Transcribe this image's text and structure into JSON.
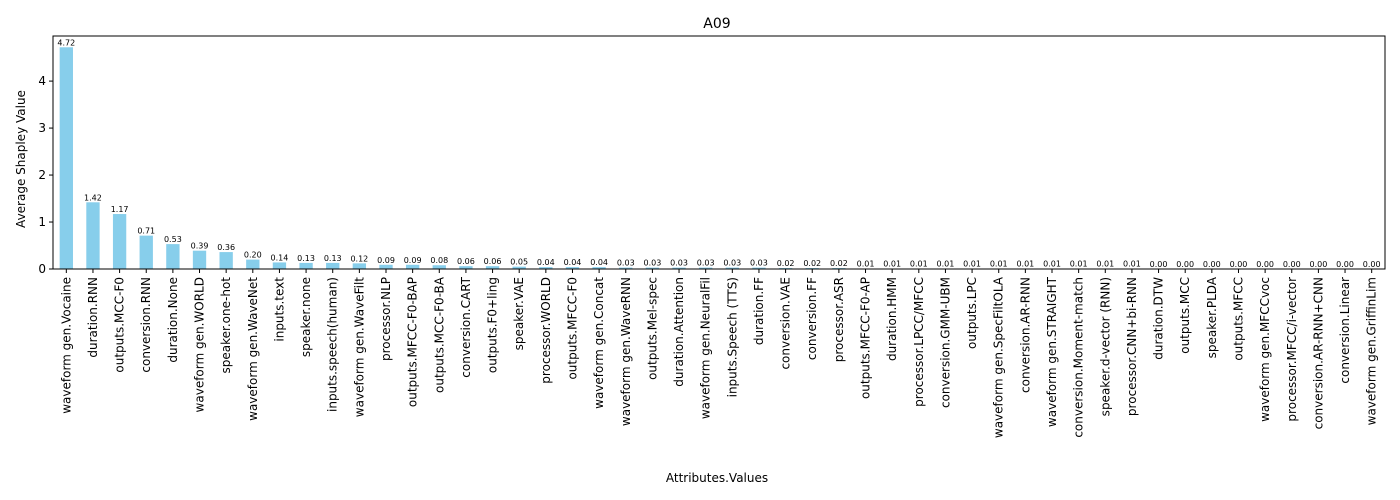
{
  "chart_data": {
    "type": "bar",
    "title": "A09",
    "xlabel": "Attributes.Values",
    "ylabel": "Average Shapley Value",
    "ylim": [
      0,
      4.96
    ],
    "yticks": [
      0,
      1,
      2,
      3,
      4
    ],
    "bar_color": "#87ceeb",
    "grid": false,
    "categories": [
      "waveform gen.Vocaine",
      "duration.RNN",
      "outputs.MCC-F0",
      "conversion.RNN",
      "duration.None",
      "waveform gen.WORLD",
      "speaker.one-hot",
      "waveform gen.WaveNet",
      "inputs.text",
      "speaker.none",
      "inputs.speech(human)",
      "waveform gen.WaveFilt",
      "processor.NLP",
      "outputs.MFCC-F0-BAP",
      "outputs.MCC-F0-BA",
      "conversion.CART",
      "outputs.F0+ling",
      "speaker.VAE",
      "processor.WORLD",
      "outputs.MFCC-F0",
      "waveform gen.Concat",
      "waveform gen.WaveRNN",
      "outputs.Mel-spec",
      "duration.Attention",
      "waveform gen.NeuralFil",
      "inputs.Speech (TTS)",
      "duration.FF",
      "conversion.VAE",
      "conversion.FF",
      "processor.ASR",
      "outputs.MFCC-F0-AP",
      "duration.HMM",
      "processor.LPCC/MFCC",
      "conversion.GMM-UBM",
      "outputs.LPC",
      "waveform gen.SpecFiltOLA",
      "conversion.AR-RNN",
      "waveform gen.STRAIGHT",
      "conversion.Moment-match",
      "speaker.d-vector (RNN)",
      "processor.CNN+bi-RNN",
      "duration.DTW",
      "outputs.MCC",
      "speaker.PLDA",
      "outputs.MFCC",
      "waveform gen.MFCCvoc",
      "processor.MFCC/i-vector",
      "conversion.AR-RNN+CNN",
      "conversion.Linear",
      "waveform gen.GriffinLim"
    ],
    "values": [
      4.72,
      1.42,
      1.17,
      0.71,
      0.53,
      0.39,
      0.36,
      0.2,
      0.14,
      0.13,
      0.13,
      0.12,
      0.09,
      0.09,
      0.08,
      0.06,
      0.06,
      0.05,
      0.04,
      0.04,
      0.04,
      0.03,
      0.03,
      0.03,
      0.03,
      0.03,
      0.03,
      0.02,
      0.02,
      0.02,
      0.01,
      0.01,
      0.01,
      0.01,
      0.01,
      0.01,
      0.01,
      0.01,
      0.01,
      0.01,
      0.01,
      0.0,
      0.0,
      0.0,
      0.0,
      0.0,
      0.0,
      0.0,
      0.0,
      0.0
    ],
    "data_labels": [
      "4.72",
      "1.42",
      "1.17",
      "0.71",
      "0.53",
      "0.39",
      "0.36",
      "0.20",
      "0.14",
      "0.13",
      "0.13",
      "0.12",
      "0.09",
      "0.09",
      "0.08",
      "0.06",
      "0.06",
      "0.05",
      "0.04",
      "0.04",
      "0.04",
      "0.03",
      "0.03",
      "0.03",
      "0.03",
      "0.03",
      "0.03",
      "0.02",
      "0.02",
      "0.02",
      "0.01",
      "0.01",
      "0.01",
      "0.01",
      "0.01",
      "0.01",
      "0.01",
      "0.01",
      "0.01",
      "0.01",
      "0.01",
      "0.00",
      "0.00",
      "0.00",
      "0.00",
      "0.00",
      "0.00",
      "0.00",
      "0.00",
      "0.00"
    ]
  }
}
